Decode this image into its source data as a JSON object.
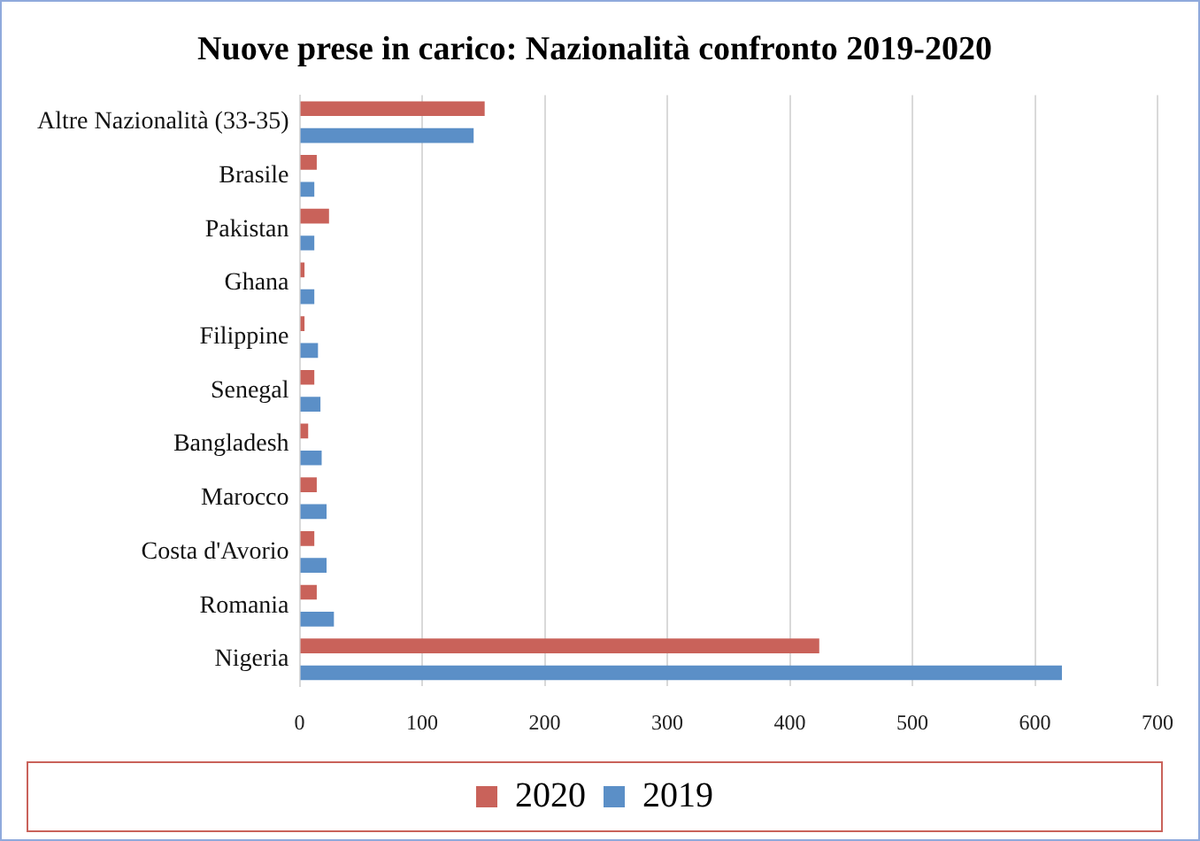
{
  "chart_data": {
    "type": "bar",
    "orientation": "horizontal",
    "title": "Nuove prese in carico: Nazionalità confronto 2019-2020",
    "categories": [
      "Altre Nazionalità (33-35)",
      "Brasile",
      "Pakistan",
      "Ghana",
      "Filippine",
      "Senegal",
      "Bangladesh",
      "Marocco",
      "Costa d'Avorio",
      "Romania",
      "Nigeria"
    ],
    "series": [
      {
        "name": "2020",
        "color": "#c9625a",
        "values": [
          151,
          14,
          24,
          4,
          4,
          12,
          7,
          14,
          12,
          14,
          424
        ]
      },
      {
        "name": "2019",
        "color": "#5b8fc7",
        "values": [
          142,
          12,
          12,
          12,
          15,
          17,
          18,
          22,
          22,
          28,
          622
        ]
      }
    ],
    "xlim": [
      0,
      700
    ],
    "xticks": [
      0,
      100,
      200,
      300,
      400,
      500,
      600,
      700
    ],
    "grid": "x",
    "legend": "bottom"
  }
}
